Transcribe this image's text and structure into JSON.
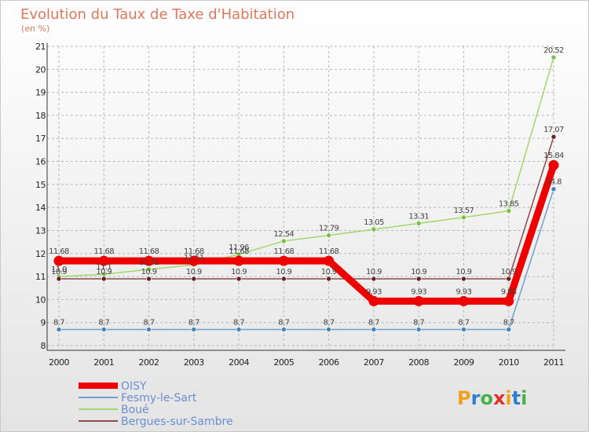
{
  "title": "Evolution du Taux de Taxe d'Habitation",
  "subtitle": "(en %)",
  "logo": {
    "letters": [
      "P",
      "r",
      "o",
      "x",
      "i",
      "t",
      "i"
    ],
    "colors": [
      "#f0a020",
      "#2f7fcf",
      "#4ab04a",
      "#e03030",
      "#f0a020",
      "#2f7fcf",
      "#4ab04a"
    ]
  },
  "chart_data": {
    "type": "line",
    "title": "Evolution du Taux de Taxe d'Habitation",
    "ylabel": "(en %)",
    "xlabel": "",
    "categories": [
      "2000",
      "2001",
      "2002",
      "2003",
      "2004",
      "2005",
      "2006",
      "2007",
      "2008",
      "2009",
      "2010",
      "2011"
    ],
    "ylim": [
      8,
      21
    ],
    "yticks": [
      "8",
      "9",
      "10",
      "11",
      "12",
      "13",
      "14",
      "15",
      "16",
      "17",
      "18",
      "19",
      "20",
      "21"
    ],
    "grid": true,
    "legend": "bottom-left",
    "series": [
      {
        "name": "Fesmy-le-Sart",
        "color": "#6fa0cc",
        "point": "#3d85c0",
        "width": 1.5,
        "values": [
          8.7,
          8.7,
          8.7,
          8.7,
          8.7,
          8.7,
          8.7,
          8.7,
          8.7,
          8.7,
          8.7,
          14.8
        ],
        "labels": [
          "8.7",
          "8.7",
          "8.7",
          "8.7",
          "8.7",
          "8.7",
          "8.7",
          "8.7",
          "8.7",
          "8.7",
          "8.7",
          "14.8"
        ]
      },
      {
        "name": "Boué",
        "color": "#a0d86c",
        "point": "#7ac142",
        "width": 1.5,
        "values": [
          11.0,
          11.1,
          11.31,
          11.51,
          11.96,
          12.54,
          12.79,
          13.05,
          13.31,
          13.57,
          13.85,
          20.52
        ],
        "labels": [
          "11.0",
          "11.1",
          "11.31",
          "11.51",
          "11.96",
          "12.54",
          "12.79",
          "13.05",
          "13.31",
          "13.57",
          "13.85",
          "20.52"
        ]
      },
      {
        "name": "Bergues-sur-Sambre",
        "color": "#8c4a4a",
        "point": "#6a1e1e",
        "width": 1.5,
        "values": [
          10.9,
          10.9,
          10.9,
          10.9,
          10.9,
          10.9,
          10.9,
          10.9,
          10.9,
          10.9,
          10.9,
          17.07
        ],
        "labels": [
          "10.9",
          "10.9",
          "10.9",
          "10.9",
          "10.9",
          "10.9",
          "10.9",
          "10.9",
          "10.9",
          "10.9",
          "10.9",
          "17.07"
        ]
      },
      {
        "name": "OISY",
        "color": "#ee0000",
        "point": "#ee0000",
        "width": 9,
        "values": [
          11.68,
          11.68,
          11.68,
          11.68,
          11.68,
          11.68,
          11.68,
          9.93,
          9.93,
          9.93,
          9.93,
          15.84
        ],
        "labels": [
          "11.68",
          "11.68",
          "11.68",
          "11.68",
          "11.68",
          "11.68",
          "11.68",
          "9.93",
          "9.93",
          "9.93",
          "9.93",
          "15.84"
        ]
      }
    ],
    "legend_order": [
      "OISY",
      "Fesmy-le-Sart",
      "Boué",
      "Bergues-sur-Sambre"
    ]
  }
}
